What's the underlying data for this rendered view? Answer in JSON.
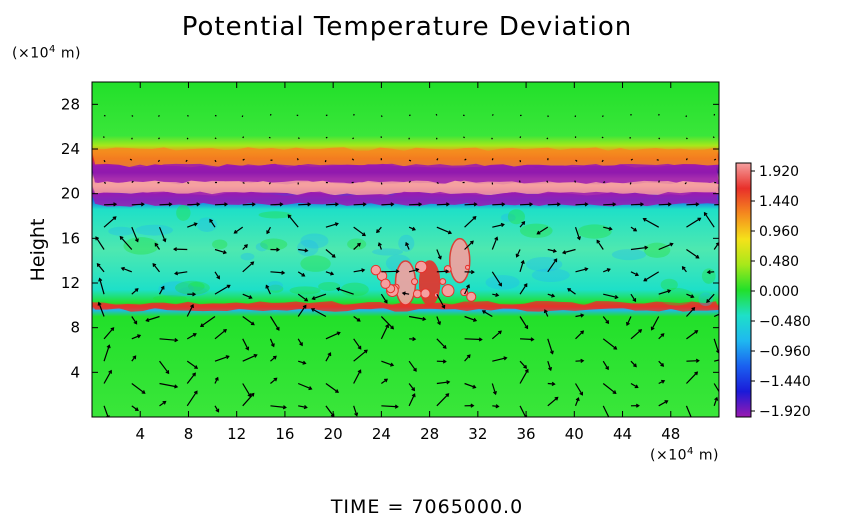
{
  "chart_data": {
    "type": "heatmap",
    "title": "Potential Temperature Deviation",
    "ylabel": "Height",
    "xlabel": "",
    "y_unit_label": "(×10⁴ m)",
    "x_unit_label": "(×10⁴ m)",
    "xlim": [
      0,
      52
    ],
    "ylim": [
      0,
      30
    ],
    "x_ticks": [
      "4",
      "8",
      "12",
      "16",
      "20",
      "24",
      "28",
      "32",
      "36",
      "40",
      "44",
      "48"
    ],
    "y_ticks": [
      "4",
      "8",
      "12",
      "16",
      "20",
      "24",
      "28"
    ],
    "x_tick_values": [
      4,
      8,
      12,
      16,
      20,
      24,
      28,
      32,
      36,
      40,
      44,
      48
    ],
    "y_tick_values": [
      4,
      8,
      12,
      16,
      20,
      24,
      28
    ],
    "colorbar": {
      "labels": [
        "1.920",
        "1.440",
        "0.960",
        "0.480",
        "0.000",
        "−0.480",
        "−0.960",
        "−1.440",
        "−1.920"
      ],
      "values": [
        1.92,
        1.44,
        0.96,
        0.48,
        0.0,
        -0.48,
        -0.96,
        -1.44,
        -1.92
      ],
      "range": [
        -1.92,
        1.92
      ],
      "colors": [
        "#f5a0a0",
        "#e8302a",
        "#f58a1e",
        "#f5e21a",
        "#a8e81a",
        "#22e02a",
        "#1ee0c8",
        "#1fb8f0",
        "#1a60f0",
        "#1a1ad8",
        "#5a1aa0",
        "#9a1ab0"
      ]
    },
    "field_bands": [
      {
        "y_range": [
          24,
          30
        ],
        "level": 0.1,
        "description": "background"
      },
      {
        "y_range": [
          22.5,
          24
        ],
        "level": 1.3
      },
      {
        "y_range": [
          21,
          22.5
        ],
        "level": -1.9
      },
      {
        "y_range": [
          20,
          21
        ],
        "level": 1.92
      },
      {
        "y_range": [
          19,
          20
        ],
        "level": -1.9
      },
      {
        "y_range": [
          10,
          19
        ],
        "level": -0.6
      },
      {
        "y_range": [
          9.6,
          10.2
        ],
        "level": 1.5
      },
      {
        "y_range": [
          0,
          9.6
        ],
        "level": 0.1
      }
    ],
    "hotspots": [
      {
        "x": 30.5,
        "y": 14,
        "level": 1.92
      },
      {
        "x": 26,
        "y": 12,
        "level": 1.92
      },
      {
        "x": 28,
        "y": 12,
        "level": 1.6
      }
    ],
    "wind_vectors": "arrow field overlay",
    "legend": "right",
    "grid": false
  },
  "footer": {
    "time_label": "TIME",
    "time_equals": "=",
    "time_value": "7065000.0"
  }
}
